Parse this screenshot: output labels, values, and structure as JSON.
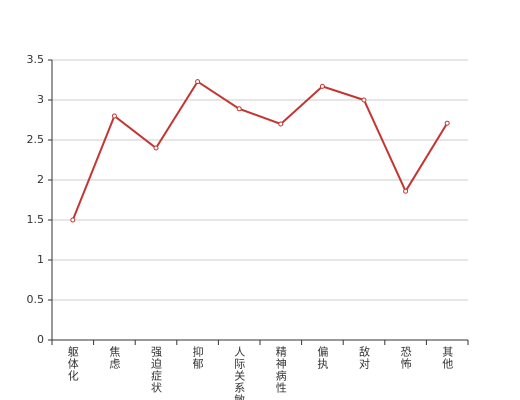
{
  "chart_data": {
    "type": "line",
    "categories": [
      "躯体化",
      "焦虑",
      "强迫症状",
      "抑郁",
      "人际关系敏感",
      "精神病性",
      "偏执",
      "敌对",
      "恐怖",
      "其他"
    ],
    "values": [
      1.5,
      2.8,
      2.4,
      3.23,
      2.89,
      2.7,
      3.17,
      3.0,
      1.86,
      2.71
    ],
    "color": "#c23531",
    "ylim": [
      0,
      3.5
    ],
    "yticks": [
      0,
      0.5,
      1,
      1.5,
      2,
      2.5,
      3,
      3.5
    ],
    "grid": true
  }
}
